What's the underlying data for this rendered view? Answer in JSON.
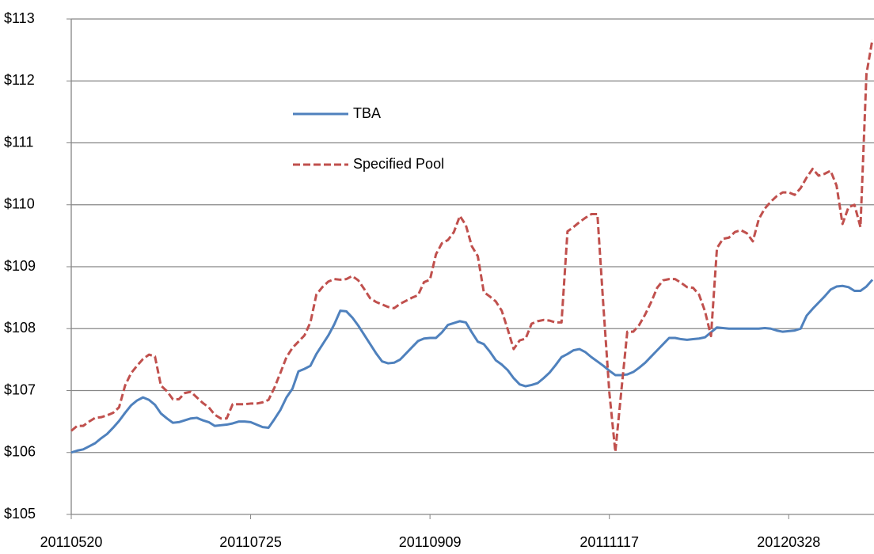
{
  "chart_data": {
    "type": "line",
    "categories": [
      "20110520",
      null,
      null,
      null,
      null,
      null,
      null,
      null,
      null,
      null,
      null,
      null,
      null,
      null,
      null,
      null,
      null,
      null,
      null,
      null,
      null,
      null,
      null,
      null,
      null,
      null,
      null,
      null,
      null,
      null,
      "20110725",
      null,
      null,
      null,
      null,
      null,
      null,
      null,
      null,
      null,
      null,
      null,
      null,
      null,
      null,
      null,
      null,
      null,
      null,
      null,
      null,
      null,
      null,
      null,
      null,
      null,
      null,
      null,
      null,
      null,
      "20110909",
      null,
      null,
      null,
      null,
      null,
      null,
      null,
      null,
      null,
      null,
      null,
      null,
      null,
      null,
      null,
      null,
      null,
      null,
      null,
      null,
      null,
      null,
      null,
      null,
      null,
      null,
      null,
      null,
      null,
      "20111117",
      null,
      null,
      null,
      null,
      null,
      null,
      null,
      null,
      null,
      null,
      null,
      null,
      null,
      null,
      null,
      null,
      null,
      null,
      null,
      null,
      null,
      null,
      null,
      null,
      null,
      null,
      null,
      null,
      null,
      "20120328",
      null,
      null,
      null,
      null,
      null,
      null,
      null,
      null,
      null,
      null,
      null,
      null,
      null,
      null
    ],
    "series": [
      {
        "name": "TBA",
        "color": "#4f81bd",
        "line_style": "solid",
        "values": [
          106.0,
          106.03,
          106.05,
          106.1,
          106.15,
          106.23,
          106.3,
          106.4,
          106.51,
          106.64,
          106.76,
          106.84,
          106.89,
          106.85,
          106.77,
          106.63,
          106.55,
          106.48,
          106.49,
          106.52,
          106.55,
          106.56,
          106.52,
          106.49,
          106.43,
          106.44,
          106.45,
          106.47,
          106.5,
          106.5,
          106.49,
          106.45,
          106.41,
          106.4,
          106.54,
          106.69,
          106.89,
          107.03,
          107.31,
          107.35,
          107.4,
          107.59,
          107.74,
          107.89,
          108.07,
          108.29,
          108.28,
          108.18,
          108.05,
          107.9,
          107.75,
          107.6,
          107.47,
          107.44,
          107.45,
          107.5,
          107.6,
          107.7,
          107.8,
          107.84,
          107.85,
          107.85,
          107.94,
          108.06,
          108.09,
          108.12,
          108.1,
          107.94,
          107.79,
          107.75,
          107.63,
          107.49,
          107.42,
          107.33,
          107.2,
          107.1,
          107.07,
          107.09,
          107.12,
          107.2,
          107.29,
          107.41,
          107.54,
          107.59,
          107.65,
          107.67,
          107.62,
          107.54,
          107.47,
          107.4,
          107.32,
          107.25,
          107.25,
          107.26,
          107.3,
          107.37,
          107.45,
          107.55,
          107.65,
          107.75,
          107.85,
          107.85,
          107.83,
          107.82,
          107.83,
          107.84,
          107.86,
          107.94,
          108.02,
          108.01,
          108.0,
          108.0,
          108.0,
          108.0,
          108.0,
          108.0,
          108.01,
          108.0,
          107.97,
          107.95,
          107.96,
          107.97,
          108.0,
          108.21,
          108.32,
          108.42,
          108.52,
          108.63,
          108.68,
          108.69,
          108.67,
          108.61,
          108.61,
          108.68,
          108.79
        ]
      },
      {
        "name": "Specified Pool",
        "color": "#c0504d",
        "line_style": "dashed",
        "values": [
          106.35,
          106.43,
          106.43,
          106.5,
          106.56,
          106.57,
          106.6,
          106.64,
          106.73,
          107.08,
          107.28,
          107.4,
          107.51,
          107.58,
          107.55,
          107.08,
          106.99,
          106.86,
          106.86,
          106.96,
          106.98,
          106.89,
          106.8,
          106.73,
          106.61,
          106.55,
          106.55,
          106.78,
          106.78,
          106.78,
          106.79,
          106.79,
          106.81,
          106.85,
          107.05,
          107.29,
          107.54,
          107.69,
          107.79,
          107.89,
          108.1,
          108.55,
          108.67,
          108.76,
          108.8,
          108.79,
          108.8,
          108.85,
          108.78,
          108.64,
          108.49,
          108.43,
          108.39,
          108.35,
          108.33,
          108.4,
          108.45,
          108.5,
          108.54,
          108.75,
          108.79,
          109.2,
          109.38,
          109.43,
          109.56,
          109.82,
          109.67,
          109.33,
          109.17,
          108.59,
          108.52,
          108.44,
          108.29,
          107.99,
          107.67,
          107.81,
          107.84,
          108.08,
          108.12,
          108.14,
          108.13,
          108.1,
          108.1,
          109.57,
          109.64,
          109.72,
          109.79,
          109.85,
          109.85,
          108.37,
          106.97,
          106.01,
          106.99,
          107.95,
          107.95,
          108.06,
          108.23,
          108.43,
          108.66,
          108.78,
          108.8,
          108.8,
          108.74,
          108.67,
          108.66,
          108.55,
          108.28,
          107.88,
          109.3,
          109.45,
          109.47,
          109.56,
          109.59,
          109.54,
          109.41,
          109.77,
          109.94,
          110.05,
          110.14,
          110.2,
          110.2,
          110.16,
          110.27,
          110.44,
          110.58,
          110.47,
          110.5,
          110.55,
          110.31,
          109.69,
          109.96,
          110.0,
          109.64,
          112.11,
          112.67
        ]
      }
    ],
    "ylim": [
      105,
      113
    ],
    "yticks": [
      {
        "value": 105,
        "label": "$105"
      },
      {
        "value": 106,
        "label": "$106"
      },
      {
        "value": 107,
        "label": "$107"
      },
      {
        "value": 108,
        "label": "$108"
      },
      {
        "value": 109,
        "label": "$109"
      },
      {
        "value": 110,
        "label": "$110"
      },
      {
        "value": 111,
        "label": "$111"
      },
      {
        "value": 112,
        "label": "$112"
      },
      {
        "value": 113,
        "label": "$113"
      }
    ],
    "grid": true
  }
}
